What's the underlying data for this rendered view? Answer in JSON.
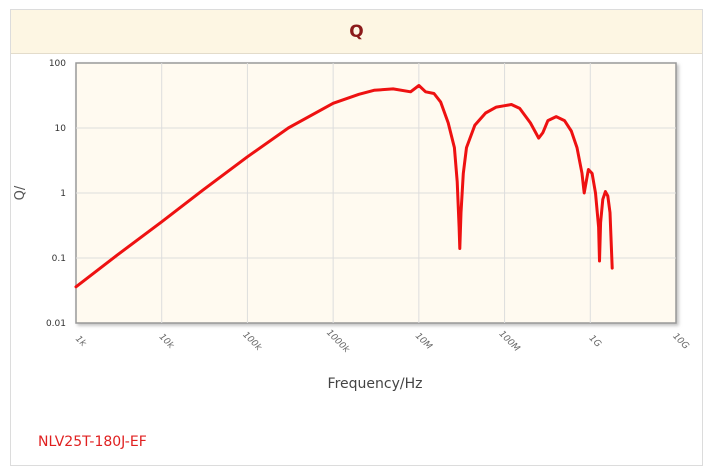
{
  "header": {
    "title": "Q"
  },
  "part_label": "NLV25T-180J-EF",
  "chart_data": {
    "type": "line",
    "title": "Q",
    "xlabel": "Frequency/Hz",
    "ylabel": "Q/",
    "x_scale": "log",
    "y_scale": "log",
    "xlim": [
      1000,
      10000000000
    ],
    "ylim": [
      0.01,
      100
    ],
    "x_ticks": [
      "1k",
      "10k",
      "100k",
      "1000k",
      "10M",
      "100M",
      "1G",
      "10G"
    ],
    "y_ticks": [
      "100",
      "10",
      "1",
      "0.1",
      "0.01"
    ],
    "grid": true,
    "series_color": "#ee1111",
    "series": [
      {
        "name": "",
        "points": [
          [
            1000,
            0.036
          ],
          [
            3000,
            0.11
          ],
          [
            10000,
            0.36
          ],
          [
            30000,
            1.1
          ],
          [
            100000,
            3.6
          ],
          [
            300000,
            10
          ],
          [
            1000000,
            24
          ],
          [
            2000000,
            33
          ],
          [
            3000000,
            38
          ],
          [
            5000000,
            40
          ],
          [
            8000000,
            36
          ],
          [
            10000000,
            45
          ],
          [
            12000000,
            36
          ],
          [
            15000000,
            34
          ],
          [
            18000000,
            25
          ],
          [
            22000000,
            12
          ],
          [
            26000000,
            5
          ],
          [
            28000000,
            1.5
          ],
          [
            29500000,
            0.3
          ],
          [
            30000000,
            0.14
          ],
          [
            31000000,
            0.5
          ],
          [
            33000000,
            2
          ],
          [
            36000000,
            5
          ],
          [
            45000000,
            11
          ],
          [
            60000000,
            17
          ],
          [
            80000000,
            21
          ],
          [
            100000000,
            22
          ],
          [
            120000000,
            23
          ],
          [
            150000000,
            20
          ],
          [
            200000000,
            12
          ],
          [
            250000000,
            7
          ],
          [
            280000000,
            8.5
          ],
          [
            320000000,
            13
          ],
          [
            400000000,
            15
          ],
          [
            500000000,
            13
          ],
          [
            600000000,
            9
          ],
          [
            700000000,
            5
          ],
          [
            800000000,
            2
          ],
          [
            850000000,
            1
          ],
          [
            950000000,
            2.3
          ],
          [
            1050000000,
            2
          ],
          [
            1150000000,
            1
          ],
          [
            1250000000,
            0.3
          ],
          [
            1280000000,
            0.09
          ],
          [
            1320000000,
            0.35
          ],
          [
            1400000000,
            0.8
          ],
          [
            1500000000,
            1.05
          ],
          [
            1600000000,
            0.9
          ],
          [
            1700000000,
            0.5
          ],
          [
            1800000000,
            0.07
          ]
        ]
      }
    ]
  }
}
